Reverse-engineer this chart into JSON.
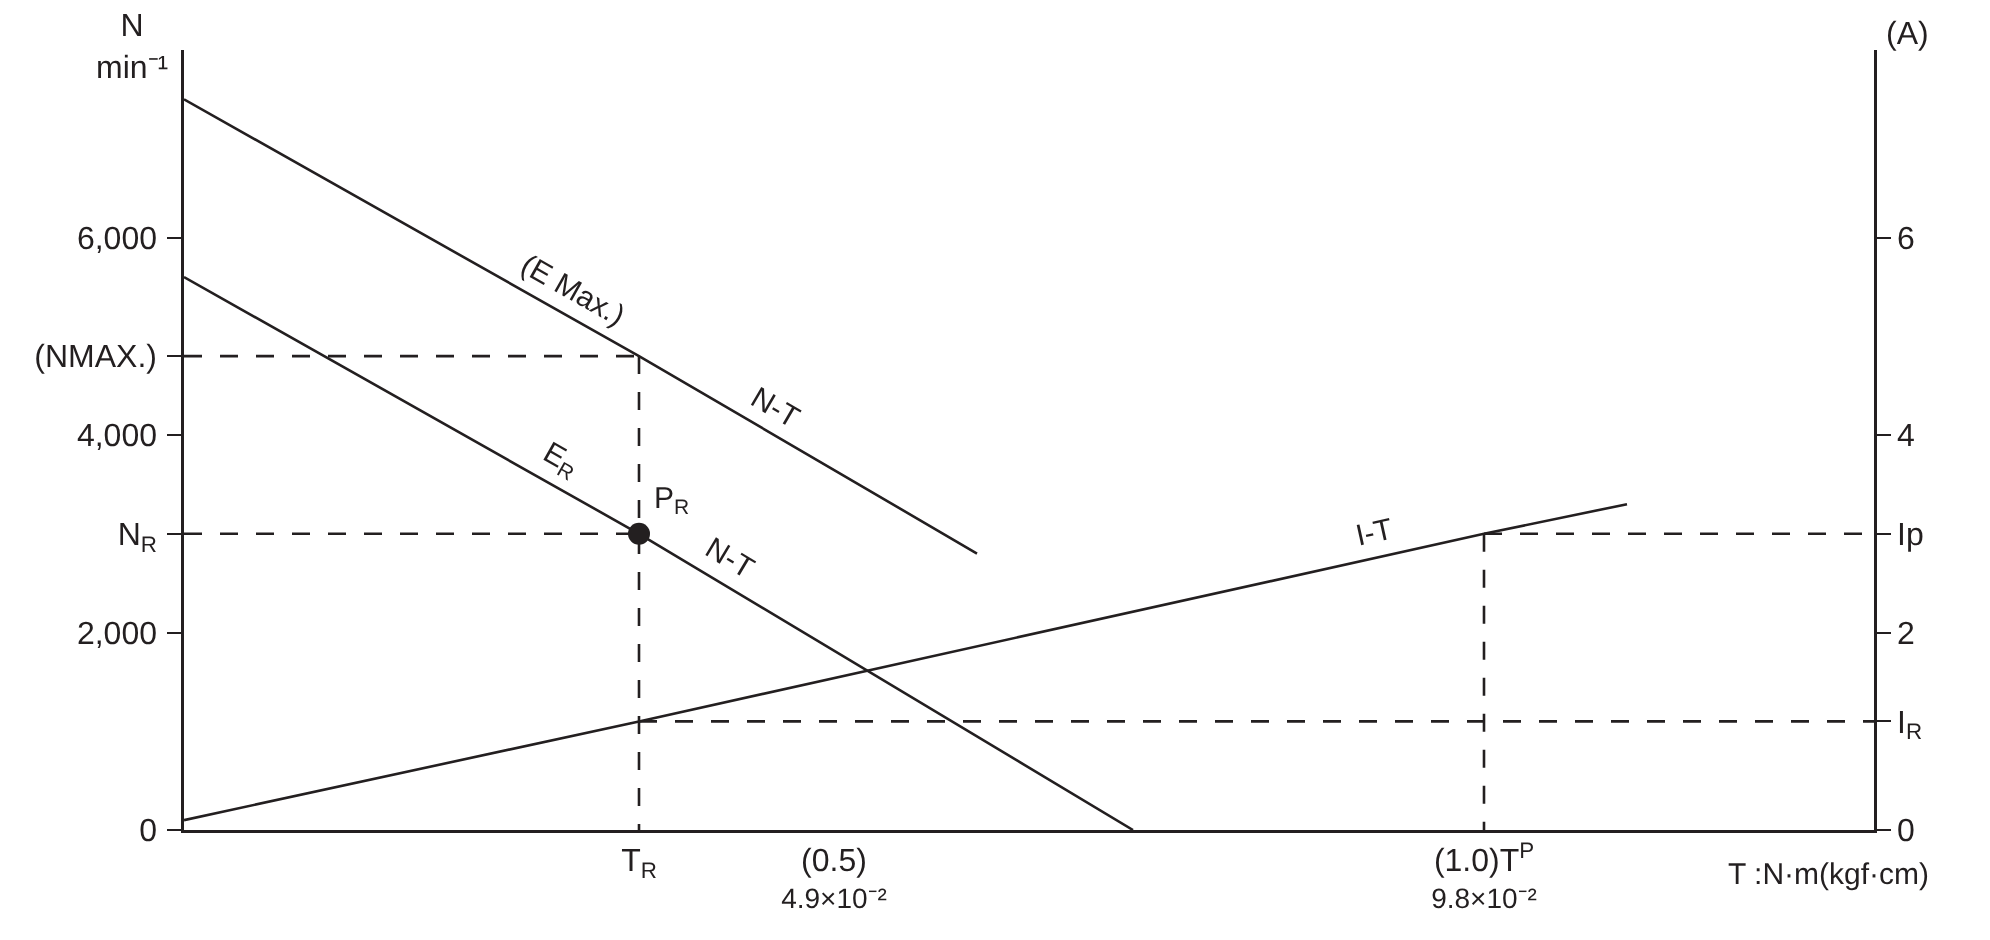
{
  "chart_data": {
    "type": "line",
    "xlabel": "T :N·m(kgf·cm)",
    "ylabel": "N\nmin⁻¹",
    "y2label": "(A)",
    "xlim": [
      0,
      1.3
    ],
    "ylim": [
      0,
      7900
    ],
    "y2lim": [
      0,
      7.9
    ],
    "x2lim": [
      0,
      0.1274
    ],
    "xticks": [
      {
        "value": 0.35,
        "label": "T$_{R}$"
      },
      {
        "value": 0.5,
        "label": "(0.5)"
      },
      {
        "value": 1.0,
        "label": "(1.0)T$^{P}$"
      }
    ],
    "x2ticks": [
      {
        "value": 0.049,
        "label": "4.9×10⁻²"
      },
      {
        "value": 0.098,
        "label": "9.8×10⁻²"
      }
    ],
    "yticks": [
      0,
      {
        "value": 2000,
        "label": "2,000"
      },
      {
        "value": 3000,
        "label": "N$_{R}$"
      },
      {
        "value": 4000,
        "label": "4,000"
      },
      {
        "value": 4800,
        "label": "(NMAX.)"
      },
      {
        "value": 6000,
        "label": "6,000"
      }
    ],
    "y2ticks": [
      0,
      {
        "value": 1.1,
        "label": "I$_{R}$"
      },
      2,
      {
        "value": 3,
        "label": "Ip"
      },
      4,
      6
    ],
    "grid": false,
    "series": [
      {
        "color": "#231f20",
        "x": [
          0,
          0.35,
          0.61
        ],
        "values": [
          7400,
          4800,
          2800
        ],
        "marker": "none",
        "line_style": "solid"
      },
      {
        "color": "#231f20",
        "x": [
          0,
          0.35,
          0.73
        ],
        "values": [
          5600,
          3000,
          0
        ],
        "marker": "none",
        "line_style": "solid"
      },
      {
        "color": "#231f20",
        "axis": "y2",
        "x": [
          0,
          0.35,
          1.0,
          1.11
        ],
        "values": [
          0.1,
          1.1,
          3.0,
          3.3
        ],
        "marker": "none",
        "line_style": "solid"
      },
      {
        "color": "#231f20",
        "x": [
          0,
          0.35
        ],
        "values": [
          4800,
          4800
        ],
        "marker": "none",
        "line_style": "dashed"
      },
      {
        "color": "#231f20",
        "x": [
          0,
          0.35
        ],
        "values": [
          3000,
          3000
        ],
        "marker": "none",
        "line_style": "dashed"
      },
      {
        "color": "#231f20",
        "x": [
          0.35,
          0.35
        ],
        "values": [
          4800,
          0
        ],
        "marker": "none",
        "line_style": "dashed"
      },
      {
        "color": "#231f20",
        "axis": "y2",
        "x": [
          0.35,
          1.3
        ],
        "values": [
          1.1,
          1.1
        ],
        "marker": "none",
        "line_style": "dashed"
      },
      {
        "color": "#231f20",
        "axis": "y2",
        "x": [
          1.0,
          1.3
        ],
        "values": [
          3.0,
          3.0
        ],
        "marker": "none",
        "line_style": "dashed"
      },
      {
        "color": "#231f20",
        "axis": "y2",
        "x": [
          1.0,
          1.0
        ],
        "values": [
          3.0,
          0
        ],
        "marker": "none",
        "line_style": "dashed"
      },
      {
        "color": "#231f20",
        "type": "scatter",
        "x": [
          0.35
        ],
        "values": [
          3000
        ],
        "marker": "circle"
      }
    ],
    "annotations": [
      {
        "text": "(E Max.)",
        "x": 0.29,
        "y": 5250
      },
      {
        "text": "N-T",
        "x": 0.446,
        "y": 4060
      },
      {
        "text": "E$_{R}$",
        "x": 0.28,
        "y": 3520
      },
      {
        "text": "P$_{R}$",
        "x": 0.35,
        "y": 3000
      },
      {
        "text": "N-T",
        "x": 0.41,
        "y": 2530
      },
      {
        "text": "I-T",
        "x": 0.92,
        "y": 2770
      }
    ]
  }
}
